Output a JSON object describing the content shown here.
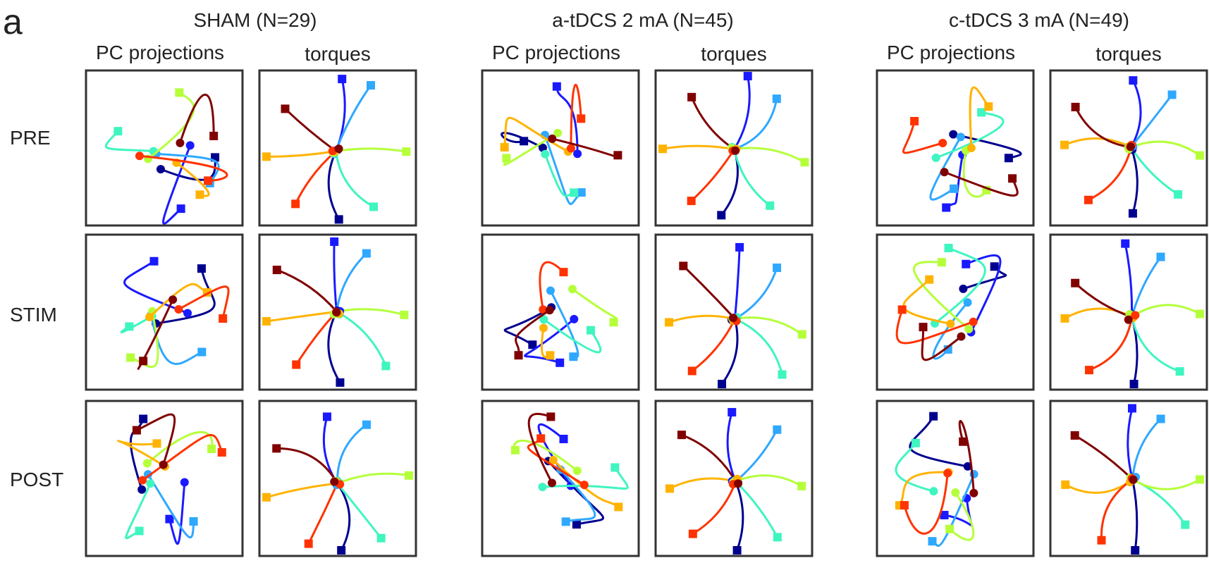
{
  "figure": {
    "panel_letter": "a",
    "subplot_headers": [
      "PC projections",
      "torques"
    ],
    "rows": [
      "PRE",
      "STIM",
      "POST"
    ],
    "groups": [
      "SHAM (N=29)",
      "a-tDCS 2 mA (N=45)",
      "c-tDCS 3 mA (N=49)"
    ]
  },
  "colors": [
    "#00008f",
    "#1a1aff",
    "#2fa8ff",
    "#3ff5c0",
    "#b5ff3a",
    "#ffb300",
    "#ff3300",
    "#800000"
  ]
}
